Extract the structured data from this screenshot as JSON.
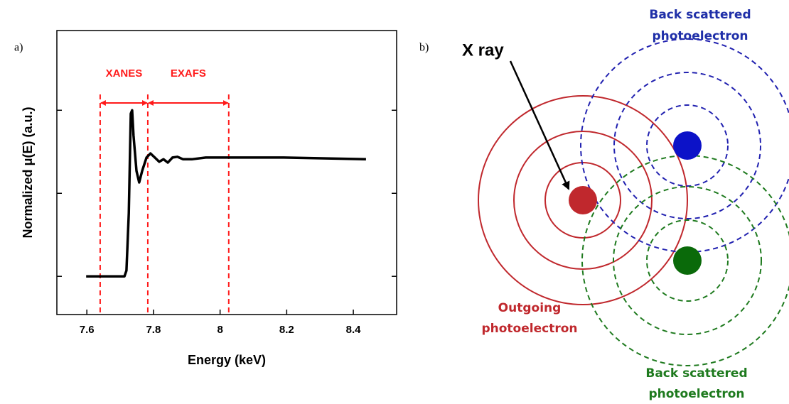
{
  "panel_labels": [
    "a)",
    "b)"
  ],
  "chart_data": {
    "type": "line",
    "xlabel": "Energy (keV)",
    "ylabel": "Normalized μ(E) (a.u.)",
    "x": [
      7.598,
      7.713,
      7.719,
      7.726,
      7.732,
      7.736,
      7.74,
      7.749,
      7.757,
      7.766,
      7.779,
      7.791,
      7.804,
      7.817,
      7.83,
      7.843,
      7.857,
      7.872,
      7.889,
      7.915,
      7.957,
      8.021,
      8.191,
      8.438
    ],
    "values": [
      0,
      0,
      0.07,
      0.76,
      1.96,
      2.0,
      1.7,
      1.27,
      1.13,
      1.27,
      1.43,
      1.48,
      1.43,
      1.38,
      1.41,
      1.37,
      1.43,
      1.44,
      1.41,
      1.41,
      1.43,
      1.43,
      1.43,
      1.41
    ],
    "color": "#000000",
    "xlim": [
      7.51,
      8.53
    ],
    "xticks": [
      7.6,
      7.8,
      8.0,
      8.2,
      8.4
    ],
    "ylim": [
      -0.46,
      2.96
    ],
    "yticks": [
      0,
      1,
      2
    ],
    "vlines": [
      7.64,
      7.783,
      8.026
    ],
    "vline_color": "#ff1a1a",
    "regions": [
      "XANES",
      "EXAFS"
    ]
  },
  "diagram": {
    "x_ray": "X ray",
    "outgoing": [
      "Outgoing",
      "photoelectron"
    ],
    "back_scattered_top": [
      "Back scattered",
      "photoelectron"
    ],
    "back_scattered_bottom": [
      "Back scattered",
      "photoelectron"
    ]
  }
}
